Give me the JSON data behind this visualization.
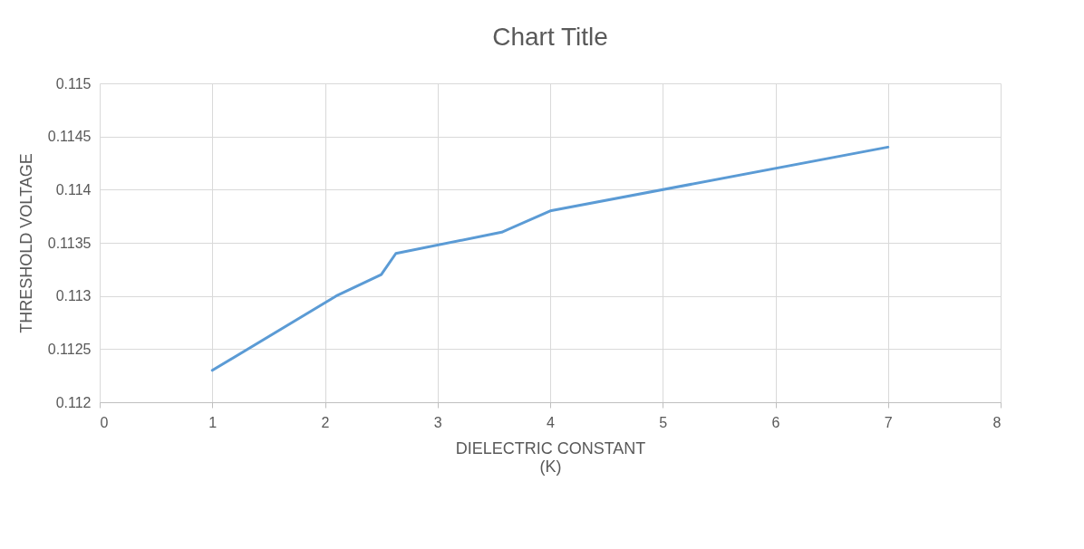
{
  "chart_data": {
    "type": "line",
    "title": "Chart Title",
    "xlabel": "DIELECTRIC CONSTANT\n(K)",
    "ylabel": "THRESHOLD VOLTAGE",
    "x": [
      1,
      2.1,
      2.5,
      2.63,
      3.57,
      4,
      7
    ],
    "series": [
      {
        "color": "#5b9bd5",
        "values": [
          0.1123,
          0.113,
          0.1132,
          0.1134,
          0.1136,
          0.1138,
          0.1144
        ]
      }
    ],
    "xlim": [
      0,
      8
    ],
    "xticks": [
      0,
      1,
      2,
      3,
      4,
      5,
      6,
      7,
      8
    ],
    "ylim": [
      0.112,
      0.115
    ],
    "yticks": [
      0.112,
      0.1125,
      0.113,
      0.1135,
      0.114,
      0.1145,
      0.115
    ],
    "grid": true,
    "marker": "none",
    "line_style": "solid"
  }
}
